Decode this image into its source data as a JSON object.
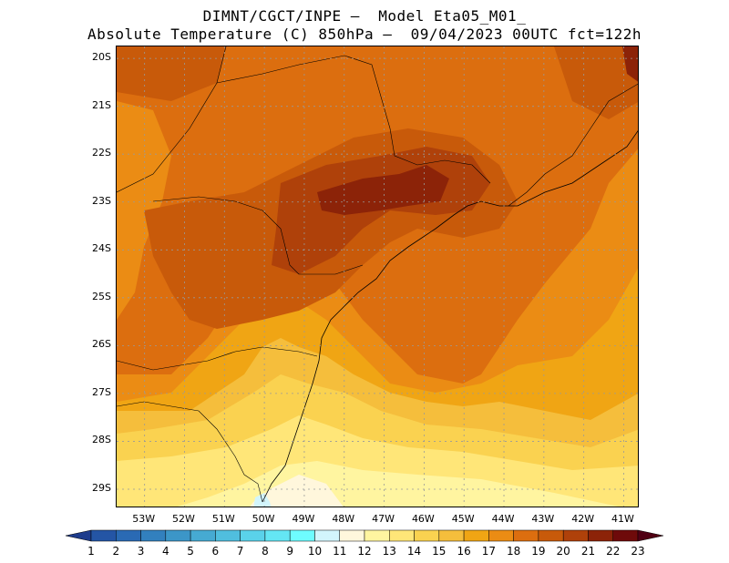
{
  "header": {
    "line1": "DIMNT/CGCT/INPE –  Model Eta05_M01_",
    "line2": "Absolute Temperature (C) 850hPa –  09/04/2023 00UTC fct=122h"
  },
  "map": {
    "lat_labels": [
      "20S",
      "21S",
      "22S",
      "23S",
      "24S",
      "25S",
      "26S",
      "27S",
      "28S",
      "29S"
    ],
    "lat_values": [
      -20,
      -21,
      -22,
      -23,
      -24,
      -25,
      -26,
      -27,
      -28,
      -29
    ],
    "lon_labels": [
      "53W",
      "52W",
      "51W",
      "50W",
      "49W",
      "48W",
      "47W",
      "46W",
      "45W",
      "44W",
      "43W",
      "42W",
      "41W"
    ],
    "lon_values": [
      -53,
      -52,
      -51,
      -50,
      -49,
      -48,
      -47,
      -46,
      -45,
      -44,
      -43,
      -42,
      -41
    ],
    "lon_range": [
      -53.7,
      -40.6
    ],
    "lat_range": [
      -29.4,
      -19.75
    ],
    "grid": "dotted",
    "ocean_region": "south-east"
  },
  "colorbar": {
    "labels": [
      "1",
      "2",
      "3",
      "4",
      "5",
      "6",
      "7",
      "8",
      "9",
      "10",
      "11",
      "12",
      "13",
      "14",
      "15",
      "16",
      "17",
      "18",
      "19",
      "20",
      "21",
      "22",
      "23"
    ],
    "colors": [
      "#1e3c8c",
      "#2455a5",
      "#2a6ab4",
      "#3280be",
      "#3c96c8",
      "#46aad2",
      "#50bede",
      "#5ad2ea",
      "#64e6f4",
      "#6efcff",
      "#d2f5fc",
      "#fff7dc",
      "#fff5a0",
      "#ffe678",
      "#fad250",
      "#f5be3c",
      "#f0a514",
      "#eb8c14",
      "#dc6e0f",
      "#c85a0a",
      "#af410a",
      "#8c2308",
      "#6e0a0a",
      "#500014"
    ],
    "arrow_left": "#1e3c8c",
    "arrow_right": "#500014"
  }
}
